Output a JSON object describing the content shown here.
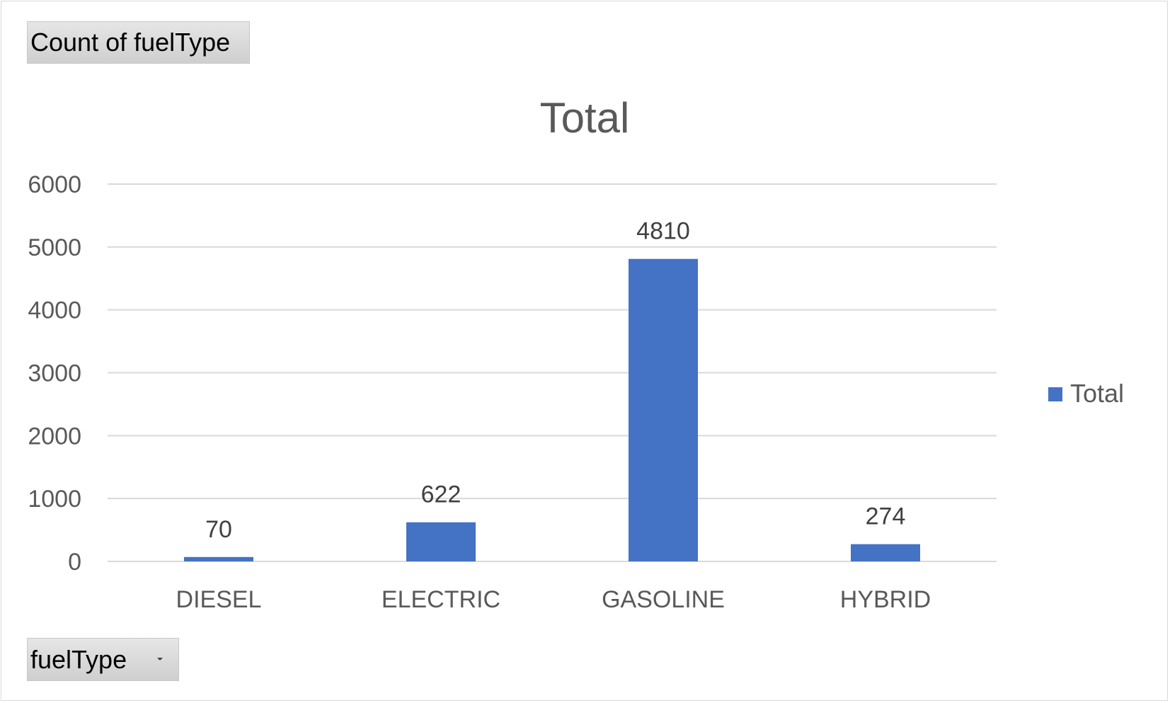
{
  "pivot": {
    "value_field_label": "Count of fuelType",
    "axis_field_label": "fuelType"
  },
  "colors": {
    "bar": "#4472c4",
    "gridline": "#d9d9d9",
    "axis_text": "#595959"
  },
  "chart_data": {
    "type": "bar",
    "title": "Total",
    "categories": [
      "DIESEL",
      "ELECTRIC",
      "GASOLINE",
      "HYBRID"
    ],
    "series": [
      {
        "name": "Total",
        "values": [
          70,
          622,
          4810,
          274
        ]
      }
    ],
    "data_labels": [
      "70",
      "622",
      "4810",
      "274"
    ],
    "ylim": [
      0,
      6000
    ],
    "yticks": [
      0,
      1000,
      2000,
      3000,
      4000,
      5000,
      6000
    ],
    "grid": true,
    "legend_position": "right"
  }
}
